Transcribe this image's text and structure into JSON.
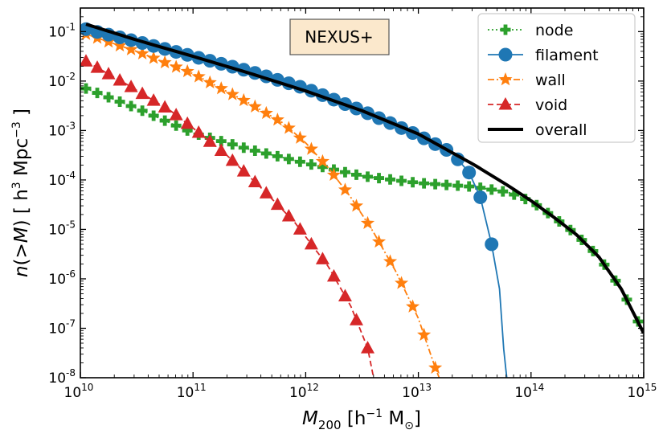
{
  "chart_data": {
    "type": "line",
    "title": "",
    "annotation": "NEXUS+",
    "xlabel": "M200 [h^-1 M_sun]",
    "ylabel": "n(>M) [h^3 Mpc^-3]",
    "xscale": "log",
    "yscale": "log",
    "xlim": [
      10000000000.0,
      1000000000000000.0
    ],
    "ylim": [
      1e-08,
      0.3
    ],
    "x_ticks": [
      {
        "base": "10",
        "exp": "10",
        "value": 10000000000.0
      },
      {
        "base": "10",
        "exp": "11",
        "value": 100000000000.0
      },
      {
        "base": "10",
        "exp": "12",
        "value": 1000000000000.0
      },
      {
        "base": "10",
        "exp": "13",
        "value": 10000000000000.0
      },
      {
        "base": "10",
        "exp": "14",
        "value": 100000000000000.0
      },
      {
        "base": "10",
        "exp": "15",
        "value": 1000000000000000.0
      }
    ],
    "y_ticks": [
      {
        "base": "10",
        "exp": "-8",
        "value": 1e-08
      },
      {
        "base": "10",
        "exp": "-7",
        "value": 1e-07
      },
      {
        "base": "10",
        "exp": "-6",
        "value": 1e-06
      },
      {
        "base": "10",
        "exp": "-5",
        "value": 1e-05
      },
      {
        "base": "10",
        "exp": "-4",
        "value": 0.0001
      },
      {
        "base": "10",
        "exp": "-3",
        "value": 0.001
      },
      {
        "base": "10",
        "exp": "-2",
        "value": 0.01
      },
      {
        "base": "10",
        "exp": "-1",
        "value": 0.1
      }
    ],
    "legend_position": "top-right",
    "series": [
      {
        "name": "node",
        "color": "#2ca02c",
        "marker": "plus",
        "linestyle": "dotted",
        "log10_x": [
          10.0,
          14.97
        ],
        "points": [
          [
            10.05,
            -2.15
          ],
          [
            10.5,
            -2.55
          ],
          [
            11.0,
            -3.05
          ],
          [
            11.5,
            -3.38
          ],
          [
            12.0,
            -3.66
          ],
          [
            12.5,
            -3.92
          ],
          [
            13.0,
            -4.06
          ],
          [
            13.5,
            -4.14
          ],
          [
            13.8,
            -4.25
          ],
          [
            14.0,
            -4.43
          ],
          [
            14.2,
            -4.75
          ],
          [
            14.4,
            -5.1
          ],
          [
            14.6,
            -5.55
          ],
          [
            14.8,
            -6.2
          ],
          [
            14.97,
            -6.95
          ]
        ]
      },
      {
        "name": "filament",
        "color": "#1f77b4",
        "marker": "circle",
        "linestyle": "solid",
        "log10_x": [
          10.0,
          13.72
        ],
        "points": [
          [
            10.05,
            -0.95
          ],
          [
            10.5,
            -1.2
          ],
          [
            11.0,
            -1.5
          ],
          [
            11.5,
            -1.8
          ],
          [
            12.0,
            -2.15
          ],
          [
            12.5,
            -2.6
          ],
          [
            13.0,
            -3.1
          ],
          [
            13.3,
            -3.45
          ],
          [
            13.45,
            -3.85
          ],
          [
            13.55,
            -4.35
          ],
          [
            13.65,
            -5.3
          ],
          [
            13.72,
            -6.2
          ],
          [
            13.76,
            -7.5
          ],
          [
            13.795,
            -8.2
          ]
        ]
      },
      {
        "name": "wall",
        "color": "#ff7f0e",
        "marker": "star",
        "linestyle": "dashdot",
        "log10_x": [
          10.0,
          13.15
        ],
        "points": [
          [
            10.05,
            -1.05
          ],
          [
            10.5,
            -1.4
          ],
          [
            11.0,
            -1.85
          ],
          [
            11.5,
            -2.45
          ],
          [
            11.8,
            -2.85
          ],
          [
            12.0,
            -3.25
          ],
          [
            12.2,
            -3.75
          ],
          [
            12.4,
            -4.35
          ],
          [
            12.6,
            -5.05
          ],
          [
            12.8,
            -5.85
          ],
          [
            13.0,
            -6.8
          ],
          [
            13.15,
            -7.8
          ],
          [
            13.22,
            -8.2
          ]
        ]
      },
      {
        "name": "void",
        "color": "#d62728",
        "marker": "triangle",
        "linestyle": "dashed",
        "log10_x": [
          10.0,
          12.55
        ],
        "points": [
          [
            10.05,
            -1.6
          ],
          [
            10.4,
            -2.05
          ],
          [
            10.8,
            -2.6
          ],
          [
            11.0,
            -2.95
          ],
          [
            11.3,
            -3.5
          ],
          [
            11.6,
            -4.15
          ],
          [
            11.9,
            -4.85
          ],
          [
            12.2,
            -5.75
          ],
          [
            12.4,
            -6.55
          ],
          [
            12.55,
            -7.4
          ],
          [
            12.62,
            -8.2
          ]
        ]
      },
      {
        "name": "overall",
        "color": "#000000",
        "marker": "none",
        "linestyle": "solid",
        "points": [
          [
            10.05,
            -0.85
          ],
          [
            10.5,
            -1.17
          ],
          [
            11.0,
            -1.5
          ],
          [
            11.5,
            -1.84
          ],
          [
            12.0,
            -2.2
          ],
          [
            12.5,
            -2.6
          ],
          [
            13.0,
            -3.07
          ],
          [
            13.5,
            -3.7
          ],
          [
            13.8,
            -4.12
          ],
          [
            14.0,
            -4.42
          ],
          [
            14.2,
            -4.75
          ],
          [
            14.4,
            -5.1
          ],
          [
            14.6,
            -5.55
          ],
          [
            14.8,
            -6.2
          ],
          [
            15.0,
            -7.1
          ]
        ]
      }
    ]
  }
}
